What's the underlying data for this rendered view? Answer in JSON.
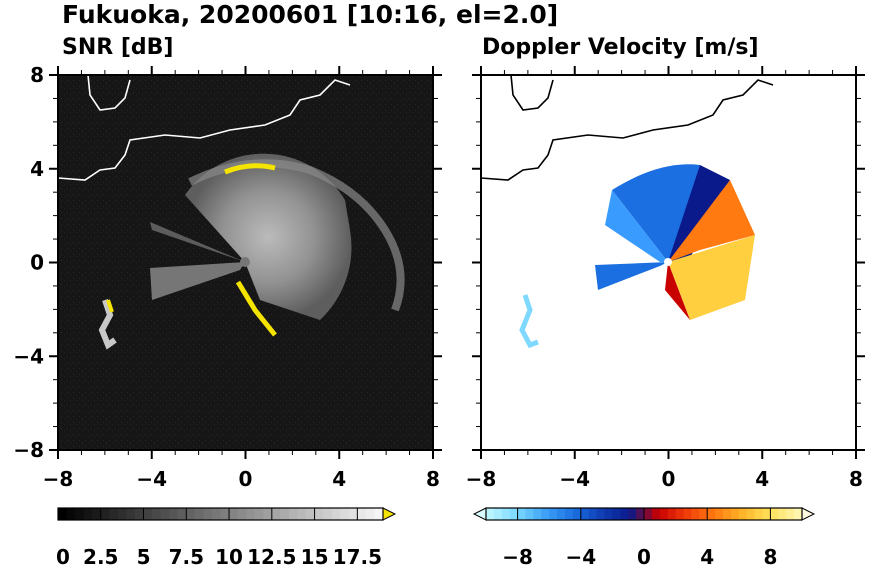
{
  "header": {
    "title": "Fukuoka, 20200601 [10:16, el=2.0]"
  },
  "colors": {
    "snr_background": "#111111",
    "snr_highlight": "#f5e400",
    "coastline": "#ffffff",
    "coastline_right": "#000000",
    "doppler_negative_far": "#b8f4ff",
    "doppler_negative_mid": "#1b6fe0",
    "doppler_negative_near": "#0a1a8a",
    "doppler_positive_near": "#c80000",
    "doppler_positive_mid": "#ff7a10",
    "doppler_positive_far": "#fff6b0"
  },
  "chart_data": [
    {
      "type": "heatmap",
      "title": "SNR [dB]",
      "xlim": [
        -8,
        8
      ],
      "ylim": [
        -8,
        8
      ],
      "x_ticks": [
        "−8",
        "−4",
        "0",
        "4",
        "8"
      ],
      "y_ticks": [
        "8",
        "4",
        "0",
        "−4",
        "−8"
      ],
      "colorbar": {
        "range": [
          0,
          19
        ],
        "extend": "max",
        "colormap": "greyscale",
        "tick_labels": [
          "0",
          "2.5",
          "5",
          "7.5",
          "10",
          "12.5",
          "15",
          "17.5"
        ]
      }
    },
    {
      "type": "heatmap",
      "title": "Doppler Velocity [m/s]",
      "xlim": [
        -8,
        8
      ],
      "ylim": [
        -8,
        8
      ],
      "x_ticks": [
        "−8",
        "−4",
        "0",
        "4",
        "8"
      ],
      "colorbar": {
        "range": [
          -10,
          10
        ],
        "extend": "both",
        "colormap": "diverging blue-red",
        "tick_labels": [
          "−8",
          "−4",
          "0",
          "4",
          "8"
        ]
      }
    }
  ]
}
